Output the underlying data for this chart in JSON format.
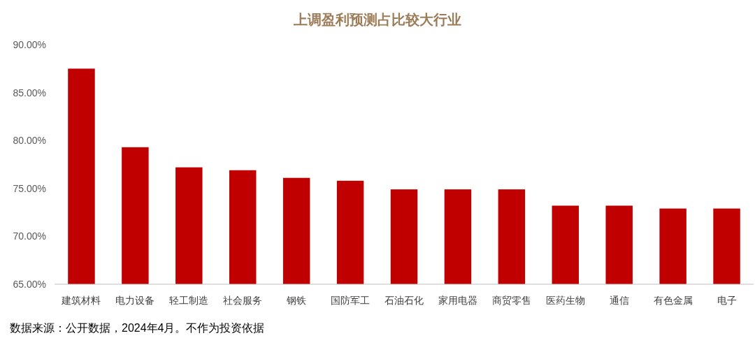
{
  "chart_data": {
    "type": "bar",
    "title": "上调盈利预测占比较大行业",
    "categories": [
      "建筑材料",
      "电力设备",
      "轻工制造",
      "社会服务",
      "钢铁",
      "国防军工",
      "石油石化",
      "家用电器",
      "商贸零售",
      "医药生物",
      "通信",
      "有色金属",
      "电子"
    ],
    "values": [
      87.5,
      79.3,
      77.2,
      76.9,
      76.1,
      75.8,
      74.9,
      74.9,
      74.9,
      73.2,
      73.2,
      72.9,
      72.9
    ],
    "color": "#c00000",
    "ylim": [
      65,
      90
    ],
    "yticks": [
      {
        "value": 65,
        "label": "65.00%"
      },
      {
        "value": 70,
        "label": "70.00%"
      },
      {
        "value": 75,
        "label": "75.00%"
      },
      {
        "value": 80,
        "label": "80.00%"
      },
      {
        "value": 85,
        "label": "85.00%"
      },
      {
        "value": 90,
        "label": "90.00%"
      }
    ],
    "grid": false,
    "annotations": [
      "数据来源：公开数据，2024年4月。不作为投资依据"
    ]
  }
}
